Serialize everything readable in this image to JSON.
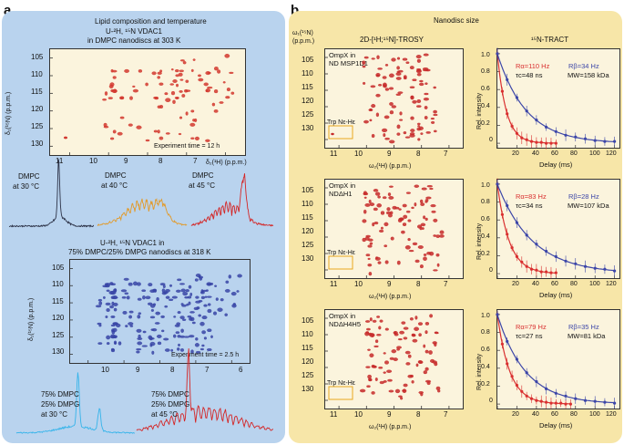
{
  "panel_a": {
    "letter": "a",
    "title": "Lipid composition and temperature",
    "hsqc1": {
      "line1": "U-²H, ¹⁵N VDAC1",
      "line2": "in DMPC nanodiscs at 303 K",
      "exp_time": "Experiment time = 12 h",
      "ylabel": "δ₁(¹⁵N) (p.p.m.)",
      "xlabel": "δ₂(¹H) (p.p.m.)",
      "yticks": [
        "105",
        "110",
        "115",
        "120",
        "125",
        "130"
      ],
      "xticks": [
        "11",
        "10",
        "9",
        "8",
        "7"
      ],
      "color": "#d2382f"
    },
    "traces1": [
      {
        "line1": "DMPC",
        "line2": "at 30 °C",
        "color": "#2d3348"
      },
      {
        "line1": "DMPC",
        "line2": "at 40 °C",
        "color": "#e29a2a"
      },
      {
        "line1": "DMPC",
        "line2": "at 45 °C",
        "color": "#d42626"
      }
    ],
    "hsqc2": {
      "line1": "U-²H, ¹⁵N VDAC1 in",
      "line2": "75% DMPC/25% DMPG nanodiscs at 318 K",
      "exp_time": "Experiment time = 2.5 h",
      "ylabel": "δ₁(¹⁵N) (p.p.m.)",
      "xlabel": "δ₂(¹H) (p.p.m.)",
      "yticks": [
        "105",
        "110",
        "115",
        "120",
        "125",
        "130"
      ],
      "xticks": [
        "10",
        "9",
        "8",
        "7",
        "6"
      ],
      "color": "#3845a6"
    },
    "traces2": [
      {
        "line1": "75% DMPC",
        "line2": "25% DMPG",
        "line3": "at 30 °C",
        "color": "#35b4ea"
      },
      {
        "line1": "75% DMPC",
        "line2": "25% DMPG",
        "line3": "at 45 °C",
        "color": "#d42626"
      }
    ]
  },
  "panel_b": {
    "letter": "b",
    "title": "Nanodisc size",
    "omega_label": "ω₁(¹⁵N)",
    "ppm_label": "(p.p.m.)",
    "trosy_title": "2D-[¹H;¹⁵N]-TROSY",
    "tract_title": "¹⁵N-TRACT",
    "rows": [
      {
        "sample_line1": "OmpX in",
        "sample_line2": "ND MSP1D1",
        "trp_label": "Trp Nε-Hε",
        "xlabel": "ω₂(¹H) (p.p.m.)",
        "yticks": [
          "105",
          "110",
          "115",
          "120",
          "125",
          "130"
        ],
        "xticks": [
          "11",
          "10",
          "9",
          "8",
          "7"
        ],
        "r_alpha": "Rα=110 Hz",
        "r_beta": "Rβ=34 Hz",
        "tau_c": "τc=48 ns",
        "mw": "MW=158 kDa",
        "ylabel": "Rel. intensity",
        "dlabel": "Delay (ms)",
        "dticks": [
          "20",
          "40",
          "60",
          "80",
          "100",
          "120"
        ],
        "iticks": [
          "0",
          "0.2",
          "0.4",
          "0.6",
          "0.8",
          "1.0"
        ]
      },
      {
        "sample_line1": "OmpX in",
        "sample_line2": "NDΔH1",
        "trp_label": "Trp Nε-Hε",
        "xlabel": "ω₂(¹H) (p.p.m.)",
        "yticks": [
          "105",
          "110",
          "115",
          "120",
          "125",
          "130"
        ],
        "xticks": [
          "11",
          "10",
          "9",
          "8",
          "7"
        ],
        "r_alpha": "Rα=83 Hz",
        "r_beta": "Rβ=28 Hz",
        "tau_c": "τc=34 ns",
        "mw": "MW=107 kDa",
        "ylabel": "Rel. intensity",
        "dlabel": "Delay (ms)",
        "dticks": [
          "20",
          "40",
          "60",
          "80",
          "100",
          "120"
        ],
        "iticks": [
          "0",
          "0.2",
          "0.4",
          "0.6",
          "0.8",
          "1.0"
        ]
      },
      {
        "sample_line1": "OmpX in",
        "sample_line2": "NDΔH4H5",
        "trp_label": "Trp Nε-Hε",
        "xlabel": "ω₂(¹H) (p.p.m.)",
        "yticks": [
          "105",
          "110",
          "115",
          "120",
          "125",
          "130"
        ],
        "xticks": [
          "11",
          "10",
          "9",
          "8",
          "7"
        ],
        "r_alpha": "Rα=79 Hz",
        "r_beta": "Rβ=35 Hz",
        "tau_c": "τc=27 ns",
        "mw": "MW=81 kDa",
        "ylabel": "Rel. intensity",
        "dlabel": "Delay (ms)",
        "dticks": [
          "20",
          "40",
          "60",
          "80",
          "100",
          "120"
        ],
        "iticks": [
          "0",
          "0.2",
          "0.4",
          "0.6",
          "0.8",
          "1.0"
        ]
      }
    ]
  },
  "colors": {
    "panel_a_bg": "#b9d3ee",
    "panel_b_bg": "#f7e6a8",
    "inner_bg": "#fbf4dd",
    "alpha_curve": "#d93030",
    "beta_curve": "#3c46a8",
    "trp_box": "#e8a81e"
  },
  "chart_data": [
    {
      "type": "scatter",
      "title": "OmpX in ND MSP1D1 (¹⁵N-TRACT)",
      "xlabel": "Delay (ms)",
      "ylabel": "Rel. intensity",
      "xlim": [
        0,
        125
      ],
      "ylim": [
        -0.05,
        1.05
      ],
      "series": [
        {
          "name": "Rα",
          "rate_hz": 110,
          "x": [
            0,
            5,
            10,
            15,
            20,
            25,
            30,
            35,
            40,
            45,
            50,
            55,
            60
          ],
          "values": [
            1.0,
            0.58,
            0.33,
            0.19,
            0.11,
            0.06,
            0.04,
            0.02,
            0.01,
            0.01,
            0.0,
            0.0,
            0.0
          ]
        },
        {
          "name": "Rβ",
          "rate_hz": 34,
          "x": [
            0,
            10,
            20,
            30,
            40,
            50,
            60,
            70,
            80,
            90,
            100,
            110,
            120
          ],
          "values": [
            1.0,
            0.71,
            0.51,
            0.36,
            0.26,
            0.18,
            0.13,
            0.09,
            0.07,
            0.05,
            0.03,
            0.02,
            0.02
          ]
        }
      ]
    },
    {
      "type": "scatter",
      "title": "OmpX in NDΔH1 (¹⁵N-TRACT)",
      "xlabel": "Delay (ms)",
      "ylabel": "Rel. intensity",
      "xlim": [
        0,
        125
      ],
      "ylim": [
        -0.05,
        1.05
      ],
      "series": [
        {
          "name": "Rα",
          "rate_hz": 83,
          "x": [
            0,
            5,
            10,
            15,
            20,
            25,
            30,
            35,
            40,
            45,
            50,
            55,
            60
          ],
          "values": [
            1.0,
            0.66,
            0.44,
            0.29,
            0.19,
            0.13,
            0.08,
            0.05,
            0.04,
            0.02,
            0.02,
            0.01,
            0.01
          ]
        },
        {
          "name": "Rβ",
          "rate_hz": 28,
          "x": [
            0,
            10,
            20,
            30,
            40,
            50,
            60,
            70,
            80,
            90,
            100,
            110,
            120
          ],
          "values": [
            1.0,
            0.76,
            0.57,
            0.43,
            0.33,
            0.25,
            0.19,
            0.14,
            0.11,
            0.08,
            0.06,
            0.05,
            0.03
          ]
        }
      ]
    },
    {
      "type": "scatter",
      "title": "OmpX in NDΔH4H5 (¹⁵N-TRACT)",
      "xlabel": "Delay (ms)",
      "ylabel": "Rel. intensity",
      "xlim": [
        0,
        125
      ],
      "ylim": [
        -0.05,
        1.05
      ],
      "series": [
        {
          "name": "Rα",
          "rate_hz": 79,
          "x": [
            0,
            5,
            10,
            15,
            20,
            25,
            30,
            35,
            40,
            45,
            50,
            55,
            60,
            65,
            70,
            75
          ],
          "values": [
            1.0,
            0.67,
            0.45,
            0.31,
            0.21,
            0.14,
            0.09,
            0.06,
            0.04,
            0.03,
            0.02,
            0.01,
            0.01,
            0.01,
            0.0,
            0.0
          ]
        },
        {
          "name": "Rβ",
          "rate_hz": 35,
          "x": [
            0,
            10,
            20,
            30,
            40,
            50,
            60,
            70,
            80,
            90,
            100,
            110,
            120
          ],
          "values": [
            1.0,
            0.7,
            0.5,
            0.35,
            0.25,
            0.17,
            0.12,
            0.09,
            0.06,
            0.04,
            0.03,
            0.02,
            0.01
          ]
        }
      ]
    }
  ]
}
